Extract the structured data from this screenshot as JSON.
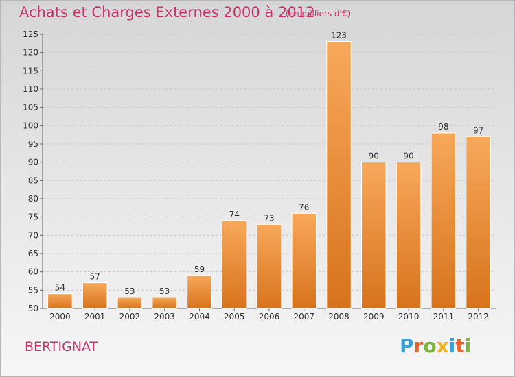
{
  "title": "Achats et Charges Externes 2000 à 2012",
  "subtitle": "(en milliers d'€)",
  "commune": "BERTIGNAT",
  "logo": {
    "text": "Proxiti",
    "letters": [
      {
        "ch": "P",
        "color": "#3aa0d8"
      },
      {
        "ch": "r",
        "color": "#e8632b"
      },
      {
        "ch": "o",
        "color": "#7ab536"
      },
      {
        "ch": "x",
        "color": "#f0b31d"
      },
      {
        "ch": "i",
        "color": "#3aa0d8"
      },
      {
        "ch": "t",
        "color": "#e8632b"
      },
      {
        "ch": "i",
        "color": "#7ab536"
      }
    ]
  },
  "colors": {
    "accent": "#c8336b",
    "bar_light": "#f7a85a",
    "bar_dark": "#d8731c"
  },
  "chart_data": {
    "type": "bar",
    "title": "Achats et Charges Externes 2000 à 2012",
    "subtitle": "(en milliers d'€)",
    "categories": [
      "2000",
      "2001",
      "2002",
      "2003",
      "2004",
      "2005",
      "2006",
      "2007",
      "2008",
      "2009",
      "2010",
      "2011",
      "2012"
    ],
    "values": [
      54,
      57,
      53,
      53,
      59,
      74,
      73,
      76,
      123,
      90,
      90,
      98,
      97
    ],
    "ylim": [
      50,
      125
    ],
    "yticks": [
      50,
      55,
      60,
      65,
      70,
      75,
      80,
      85,
      90,
      95,
      100,
      105,
      110,
      115,
      120,
      125
    ],
    "grid": true,
    "data_labels": true
  }
}
